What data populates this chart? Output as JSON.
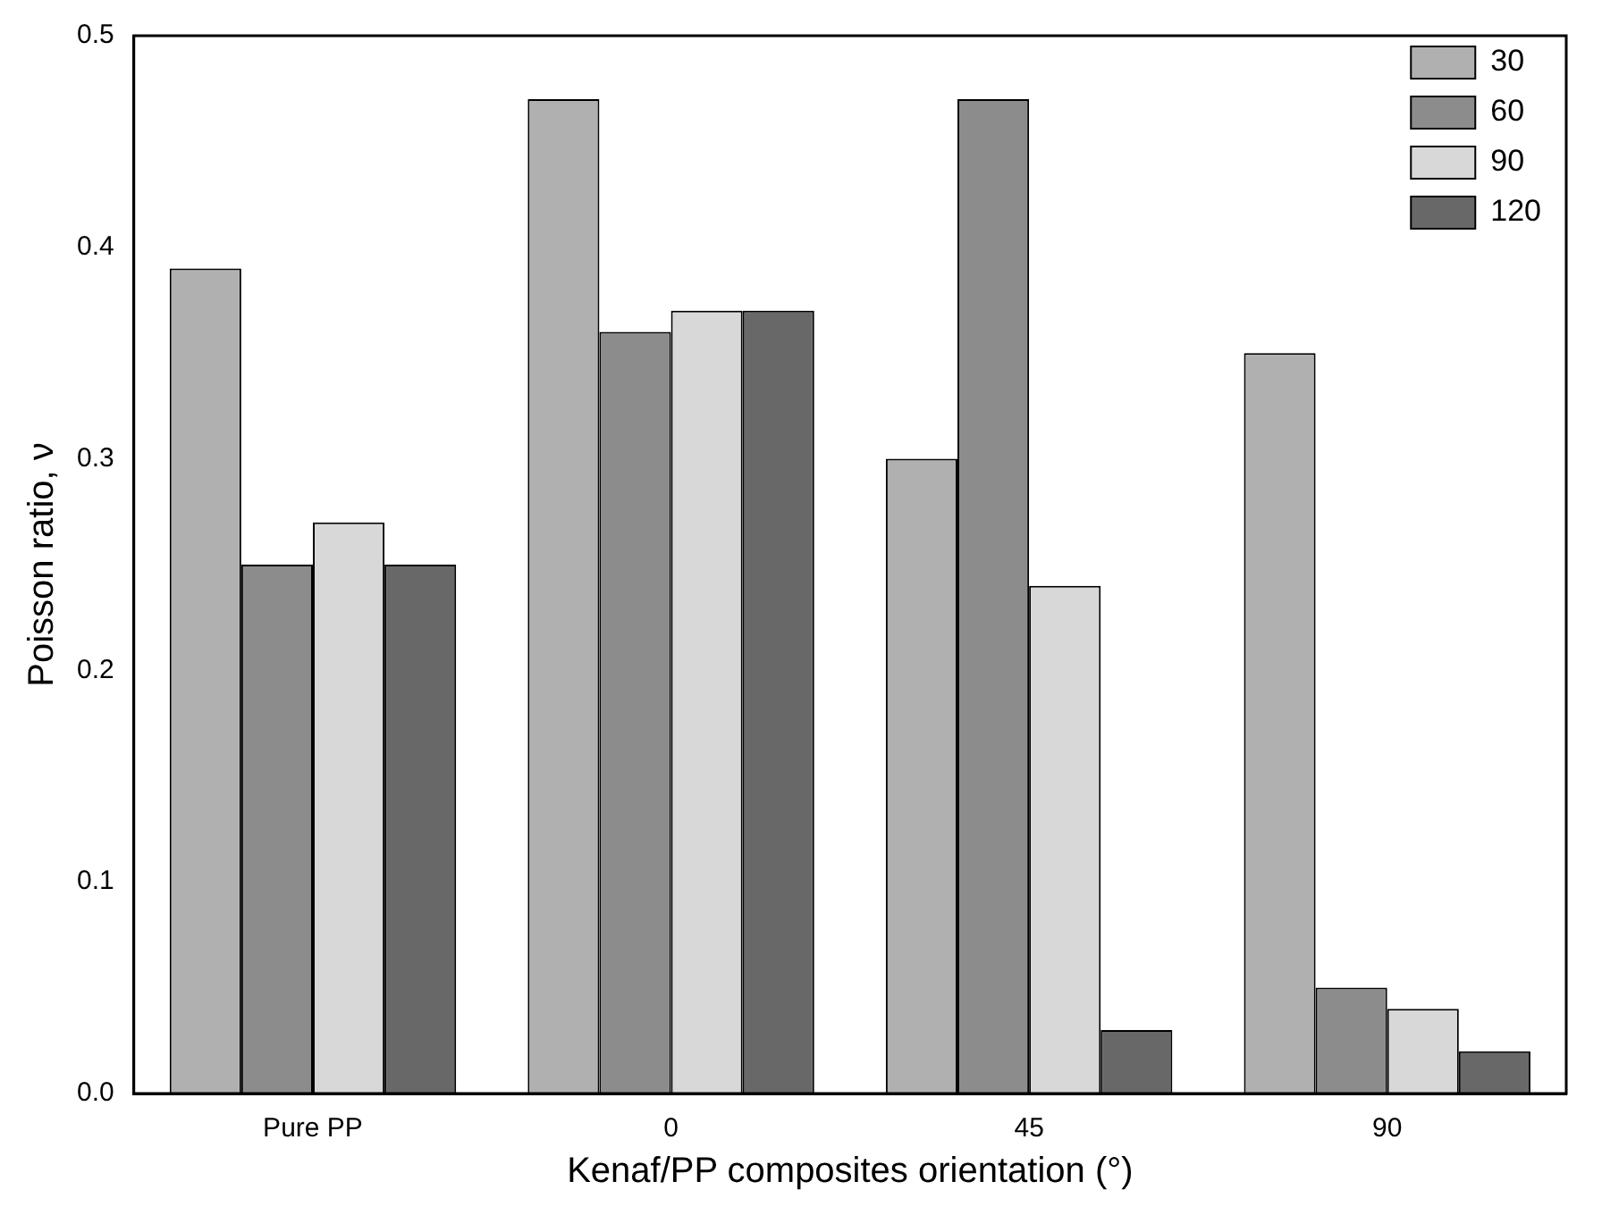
{
  "chart_data": {
    "type": "bar",
    "xlabel": "Kenaf/PP composites orientation (°)",
    "ylabel": "Poisson ratio, ν",
    "categories": [
      "Pure PP",
      "0",
      "45",
      "90"
    ],
    "series": [
      {
        "name": "30",
        "color": "#b0b0b0",
        "values": [
          0.39,
          0.47,
          0.3,
          0.35
        ]
      },
      {
        "name": "60",
        "color": "#8c8c8c",
        "values": [
          0.25,
          0.36,
          0.47,
          0.05
        ]
      },
      {
        "name": "90",
        "color": "#d8d8d8",
        "values": [
          0.27,
          0.37,
          0.24,
          0.04
        ]
      },
      {
        "name": "120",
        "color": "#686868",
        "values": [
          0.25,
          0.37,
          0.03,
          0.02
        ]
      }
    ],
    "ylim": [
      0,
      0.5
    ],
    "yticks": [
      {
        "value": 0,
        "label": "0.0"
      },
      0.1,
      0.2,
      0.3,
      0.4,
      0.5
    ],
    "grid": false,
    "legend": "top right"
  }
}
